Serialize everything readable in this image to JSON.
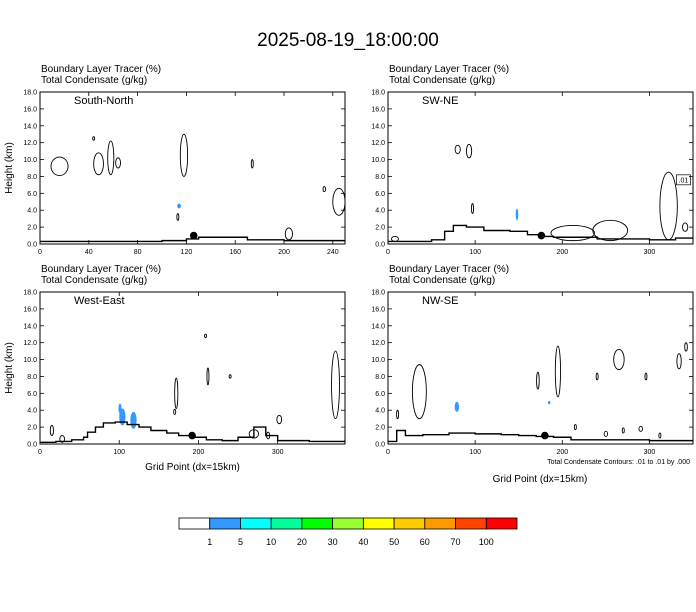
{
  "title": "2025-08-19_18:00:00",
  "colorbar": {
    "labels": [
      "1",
      "5",
      "10",
      "20",
      "30",
      "40",
      "50",
      "60",
      "70",
      "100"
    ],
    "colors": [
      "#ffffff",
      "#3399ff",
      "#00ffff",
      "#00ff99",
      "#00ff00",
      "#99ff33",
      "#ffff00",
      "#ffcc00",
      "#ff9900",
      "#ff4400",
      "#ff0000"
    ]
  },
  "footnote": "Total Condensate Contours: .01 to .01 by .000",
  "chart_data": [
    {
      "type": "contour",
      "header1": "Boundary Layer Tracer   (%)",
      "header2": "Total Condensate   (g/kg)",
      "panel_label": "South-North",
      "ylabel": "Height (km)",
      "xlabel": "",
      "xlim": [
        0,
        250
      ],
      "ylim": [
        0,
        18
      ],
      "xticks": [
        "0",
        "40",
        "80",
        "120",
        "160",
        "200",
        "240"
      ],
      "yticks": [
        "0.0",
        "2.0",
        "4.0",
        "6.0",
        "8.0",
        "10.0",
        "12.0",
        "14.0",
        "16.0",
        "18.0"
      ],
      "terrain": [
        [
          0,
          0.3
        ],
        [
          20,
          0.3
        ],
        [
          60,
          0.3
        ],
        [
          80,
          0.3
        ],
        [
          100,
          0.4
        ],
        [
          120,
          0.6
        ],
        [
          130,
          0.8
        ],
        [
          150,
          0.8
        ],
        [
          170,
          0.5
        ],
        [
          200,
          0.4
        ],
        [
          220,
          0.4
        ],
        [
          250,
          0.4
        ]
      ],
      "marker": {
        "x": 126,
        "y": 1.0
      },
      "tracer_blobs": [
        {
          "x": 114,
          "y": 4.5,
          "rx": 1.5,
          "ry": 0.3
        }
      ],
      "contours": [
        {
          "cx": 16,
          "cy": 9.2,
          "rx": 7,
          "ry": 1.1
        },
        {
          "cx": 48,
          "cy": 9.5,
          "rx": 4,
          "ry": 1.3
        },
        {
          "cx": 58,
          "cy": 10.2,
          "rx": 2.5,
          "ry": 2.0
        },
        {
          "cx": 64,
          "cy": 9.6,
          "rx": 2,
          "ry": 0.6
        },
        {
          "cx": 44,
          "cy": 12.5,
          "rx": 0.8,
          "ry": 0.2
        },
        {
          "cx": 118,
          "cy": 10.5,
          "rx": 3,
          "ry": 2.5
        },
        {
          "cx": 113,
          "cy": 3.2,
          "rx": 0.8,
          "ry": 0.4
        },
        {
          "cx": 174,
          "cy": 9.5,
          "rx": 0.8,
          "ry": 0.5
        },
        {
          "cx": 204,
          "cy": 1.2,
          "rx": 3,
          "ry": 0.7
        },
        {
          "cx": 233,
          "cy": 6.5,
          "rx": 1,
          "ry": 0.3
        },
        {
          "cx": 245,
          "cy": 5.0,
          "rx": 5,
          "ry": 1.6
        }
      ]
    },
    {
      "type": "contour",
      "header1": "Boundary Layer Tracer   (%)",
      "header2": "Total Condensate   (g/kg)",
      "panel_label": "SW-NE",
      "ylabel": "",
      "xlabel": "",
      "xlim": [
        0,
        350
      ],
      "ylim": [
        0,
        18
      ],
      "xticks": [
        "0",
        "100",
        "200",
        "300"
      ],
      "yticks": [
        "0.0",
        "2.0",
        "4.0",
        "6.0",
        "8.0",
        "10.0",
        "12.0",
        "14.0",
        "16.0",
        "18.0"
      ],
      "terrain": [
        [
          0,
          0.3
        ],
        [
          30,
          0.3
        ],
        [
          50,
          0.5
        ],
        [
          65,
          1.5
        ],
        [
          75,
          2.2
        ],
        [
          90,
          2.0
        ],
        [
          110,
          1.6
        ],
        [
          140,
          1.5
        ],
        [
          160,
          1.1
        ],
        [
          175,
          0.9
        ],
        [
          190,
          0.8
        ],
        [
          210,
          0.8
        ],
        [
          240,
          0.6
        ],
        [
          270,
          0.6
        ],
        [
          300,
          0.5
        ],
        [
          330,
          0.7
        ],
        [
          350,
          0.8
        ]
      ],
      "marker": {
        "x": 176,
        "y": 1.0
      },
      "tracer_blobs": [
        {
          "x": 148,
          "y": 3.5,
          "rx": 1.5,
          "ry": 0.7
        }
      ],
      "contours": [
        {
          "cx": 8,
          "cy": 0.6,
          "rx": 4,
          "ry": 0.3
        },
        {
          "cx": 80,
          "cy": 11.2,
          "rx": 3,
          "ry": 0.5
        },
        {
          "cx": 93,
          "cy": 11.0,
          "rx": 3,
          "ry": 0.8
        },
        {
          "cx": 97,
          "cy": 4.2,
          "rx": 1.2,
          "ry": 0.6
        },
        {
          "cx": 212,
          "cy": 1.3,
          "rx": 25,
          "ry": 0.9
        },
        {
          "cx": 255,
          "cy": 1.6,
          "rx": 20,
          "ry": 1.2
        },
        {
          "cx": 322,
          "cy": 4.5,
          "rx": 10,
          "ry": 4.0
        },
        {
          "cx": 341,
          "cy": 2.0,
          "rx": 3,
          "ry": 0.5
        }
      ],
      "label_box": {
        "x": 339,
        "y": 7.6,
        "text": ".01"
      }
    },
    {
      "type": "contour",
      "header1": "Boundary Layer Tracer   (%)",
      "header2": "Total Condensate   (g/kg)",
      "panel_label": "West-East",
      "ylabel": "Height (km)",
      "xlabel": "Grid Point (dx=15km)",
      "xlim": [
        0,
        385
      ],
      "ylim": [
        0,
        18
      ],
      "xticks": [
        "0",
        "100",
        "200",
        "300"
      ],
      "yticks": [
        "0.0",
        "2.0",
        "4.0",
        "6.0",
        "8.0",
        "10.0",
        "12.0",
        "14.0",
        "16.0",
        "18.0"
      ],
      "terrain": [
        [
          0,
          0.2
        ],
        [
          20,
          0.3
        ],
        [
          40,
          0.5
        ],
        [
          55,
          0.8
        ],
        [
          60,
          1.4
        ],
        [
          70,
          2.0
        ],
        [
          80,
          2.5
        ],
        [
          95,
          2.6
        ],
        [
          110,
          2.3
        ],
        [
          125,
          2.0
        ],
        [
          140,
          1.6
        ],
        [
          160,
          1.3
        ],
        [
          175,
          1.0
        ],
        [
          190,
          0.8
        ],
        [
          210,
          0.5
        ],
        [
          230,
          0.4
        ],
        [
          250,
          0.8
        ],
        [
          270,
          2.0
        ],
        [
          285,
          1.0
        ],
        [
          300,
          0.4
        ],
        [
          340,
          0.3
        ],
        [
          385,
          0.5
        ]
      ],
      "marker": {
        "x": 192,
        "y": 1.0
      },
      "tracer_blobs": [
        {
          "x": 104,
          "y": 3.2,
          "rx": 4,
          "ry": 1.0
        },
        {
          "x": 118,
          "y": 2.8,
          "rx": 4,
          "ry": 1.0
        },
        {
          "x": 101,
          "y": 4.2,
          "rx": 2,
          "ry": 0.6
        }
      ],
      "contours": [
        {
          "cx": 15,
          "cy": 1.6,
          "rx": 2,
          "ry": 0.6
        },
        {
          "cx": 28,
          "cy": 0.6,
          "rx": 3,
          "ry": 0.4
        },
        {
          "cx": 172,
          "cy": 6.0,
          "rx": 2,
          "ry": 1.8
        },
        {
          "cx": 170,
          "cy": 3.8,
          "rx": 0.7,
          "ry": 0.3
        },
        {
          "cx": 212,
          "cy": 8.0,
          "rx": 1.0,
          "ry": 1.0
        },
        {
          "cx": 209,
          "cy": 12.8,
          "rx": 0.5,
          "ry": 0.2
        },
        {
          "cx": 240,
          "cy": 8.0,
          "rx": 0.4,
          "ry": 0.2
        },
        {
          "cx": 270,
          "cy": 1.2,
          "rx": 6,
          "ry": 0.5
        },
        {
          "cx": 302,
          "cy": 2.9,
          "rx": 3,
          "ry": 0.5
        },
        {
          "cx": 288,
          "cy": 1.0,
          "rx": 2,
          "ry": 0.4
        },
        {
          "cx": 373,
          "cy": 7.0,
          "rx": 5,
          "ry": 4.0
        }
      ]
    },
    {
      "type": "contour",
      "header1": "Boundary Layer Tracer   (%)",
      "header2": "Total Condensate   (g/kg)",
      "panel_label": "NW-SE",
      "ylabel": "",
      "xlabel": "",
      "xlim": [
        0,
        350
      ],
      "ylim": [
        0,
        18
      ],
      "xticks": [
        "0",
        "100",
        "200",
        "300"
      ],
      "yticks": [
        "0.0",
        "2.0",
        "4.0",
        "6.0",
        "8.0",
        "10.0",
        "12.0",
        "14.0",
        "16.0",
        "18.0"
      ],
      "terrain": [
        [
          0,
          0.3
        ],
        [
          10,
          1.6
        ],
        [
          20,
          1.0
        ],
        [
          40,
          1.1
        ],
        [
          70,
          1.3
        ],
        [
          100,
          1.2
        ],
        [
          130,
          1.1
        ],
        [
          150,
          1.0
        ],
        [
          170,
          0.9
        ],
        [
          190,
          0.8
        ],
        [
          210,
          0.5
        ],
        [
          250,
          0.5
        ],
        [
          300,
          0.4
        ],
        [
          350,
          0.4
        ]
      ],
      "marker": {
        "x": 180,
        "y": 1.0
      },
      "tracer_blobs": [
        {
          "x": 79,
          "y": 4.4,
          "rx": 2.5,
          "ry": 0.6
        },
        {
          "x": 185,
          "y": 4.9,
          "rx": 0.5,
          "ry": 0.2
        }
      ],
      "contours": [
        {
          "cx": 36,
          "cy": 6.2,
          "rx": 8,
          "ry": 3.2
        },
        {
          "cx": 11,
          "cy": 3.5,
          "rx": 1,
          "ry": 0.5
        },
        {
          "cx": 172,
          "cy": 7.5,
          "rx": 1.5,
          "ry": 1.0
        },
        {
          "cx": 195,
          "cy": 8.6,
          "rx": 3,
          "ry": 3.0
        },
        {
          "cx": 240,
          "cy": 8.0,
          "rx": 0.8,
          "ry": 0.4
        },
        {
          "cx": 265,
          "cy": 10.0,
          "rx": 6,
          "ry": 1.2
        },
        {
          "cx": 296,
          "cy": 8.0,
          "rx": 1,
          "ry": 0.4
        },
        {
          "cx": 334,
          "cy": 9.8,
          "rx": 2.5,
          "ry": 0.9
        },
        {
          "cx": 342,
          "cy": 11.5,
          "rx": 1.5,
          "ry": 0.5
        },
        {
          "cx": 250,
          "cy": 1.2,
          "rx": 2,
          "ry": 0.3
        },
        {
          "cx": 215,
          "cy": 2.0,
          "rx": 1,
          "ry": 0.3
        },
        {
          "cx": 270,
          "cy": 1.6,
          "rx": 1,
          "ry": 0.3
        },
        {
          "cx": 290,
          "cy": 1.8,
          "rx": 2,
          "ry": 0.3
        },
        {
          "cx": 312,
          "cy": 1.0,
          "rx": 1,
          "ry": 0.3
        }
      ]
    }
  ]
}
